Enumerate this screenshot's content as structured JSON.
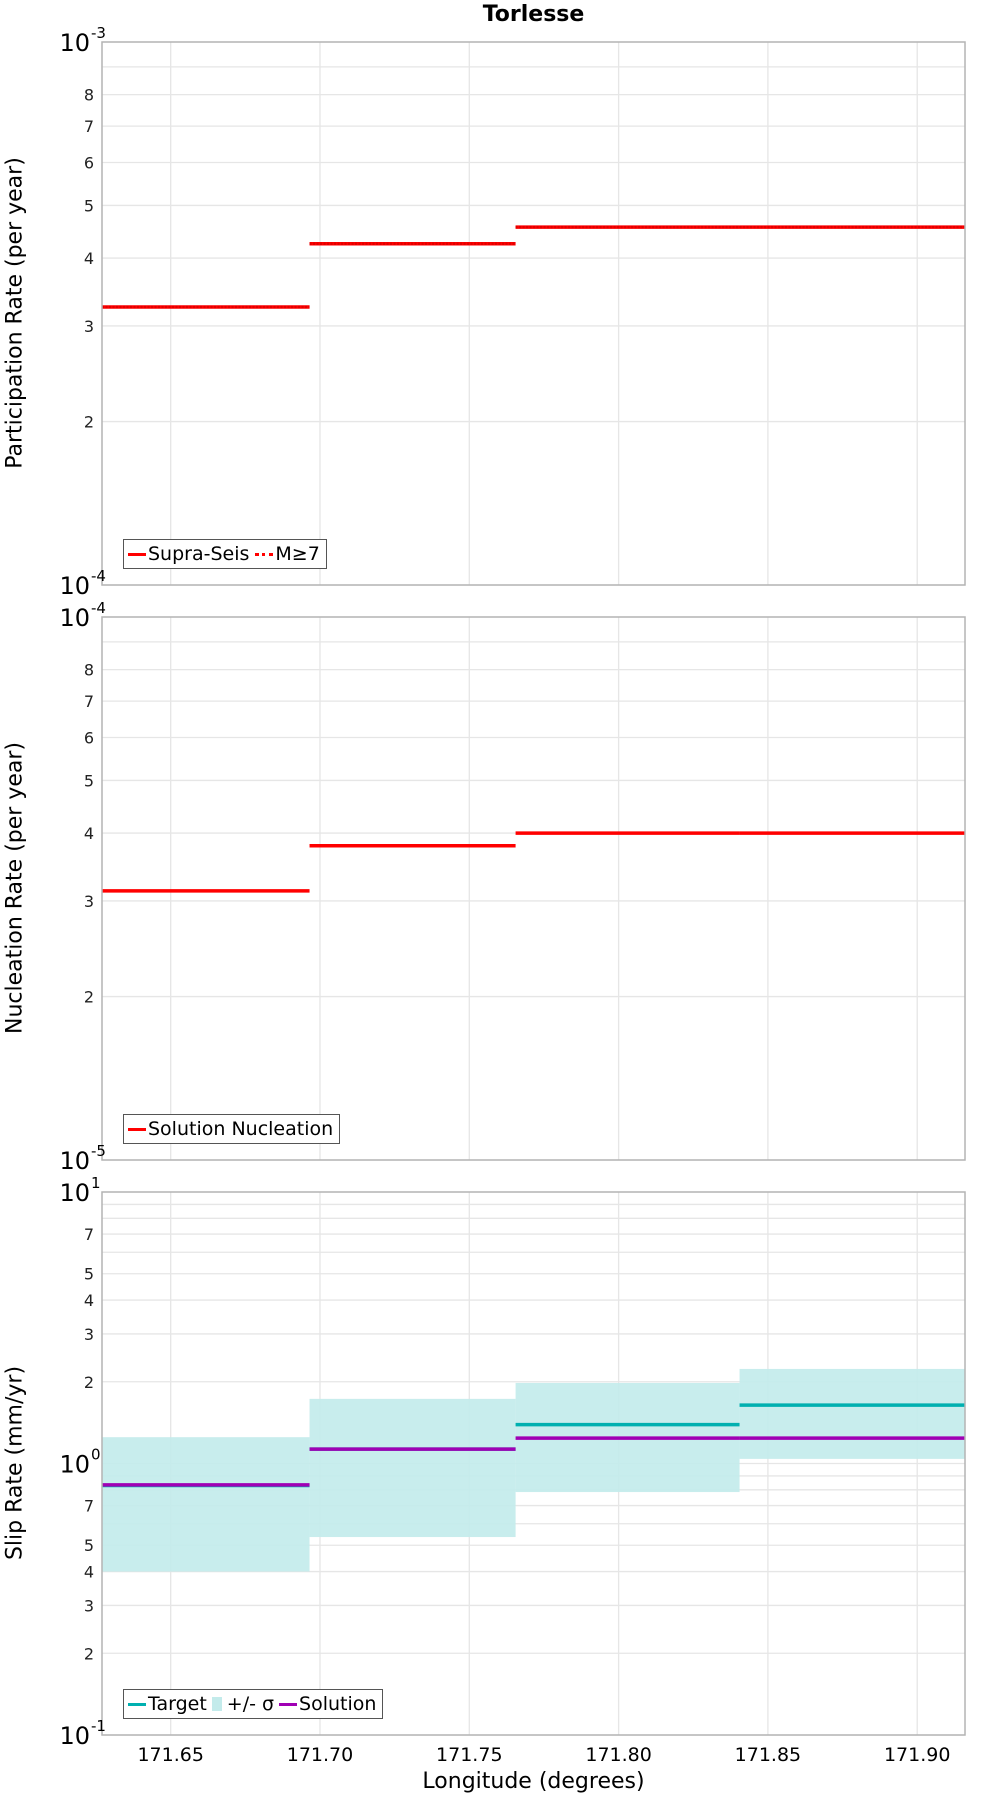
{
  "title": "Torlesse",
  "xlabel": "Longitude (degrees)",
  "colors": {
    "red": "#ff0000",
    "target": "#00b0b0",
    "sigma": "#c3ebeb",
    "solution": "#a000b4",
    "grid": "#e6e6e6",
    "axis": "#b4b4b4"
  },
  "chart_data": [
    {
      "type": "line",
      "subtype": "step",
      "title": "Torlesse",
      "xlabel": "Longitude (degrees)",
      "ylabel": "Participation Rate (per year)",
      "yscale": "log",
      "ylim": [
        0.0001,
        0.001
      ],
      "xlim": [
        171.627,
        171.916
      ],
      "xticks": [
        "171.65",
        "171.70",
        "171.75",
        "171.80",
        "171.85",
        "171.90"
      ],
      "yticks": [
        "10^-4",
        "2",
        "3",
        "4",
        "5",
        "6",
        "7",
        "8",
        "10^-3"
      ],
      "grid": true,
      "legend_position": "lower-left",
      "segments_x": [
        [
          171.627,
          171.6965
        ],
        [
          171.6965,
          171.7655
        ],
        [
          171.7655,
          171.8405
        ],
        [
          171.8405,
          171.916
        ]
      ],
      "series": [
        {
          "name": "Supra-Seis",
          "style": "solid",
          "color": "#ff0000",
          "values": [
            0.000325,
            0.000425,
            0.000456,
            0.000456
          ]
        },
        {
          "name": "M≥7",
          "style": "dotted",
          "color": "#ff0000",
          "values": [
            0.000325,
            0.000425,
            0.000456,
            0.000456
          ]
        }
      ]
    },
    {
      "type": "line",
      "subtype": "step",
      "ylabel": "Nucleation Rate (per year)",
      "yscale": "log",
      "ylim": [
        1e-05,
        0.0001
      ],
      "xlim": [
        171.627,
        171.916
      ],
      "yticks": [
        "10^-5",
        "2",
        "3",
        "4",
        "5",
        "6",
        "7",
        "8",
        "10^-4"
      ],
      "grid": true,
      "legend_position": "lower-left",
      "segments_x": [
        [
          171.627,
          171.6965
        ],
        [
          171.6965,
          171.7655
        ],
        [
          171.7655,
          171.8405
        ],
        [
          171.8405,
          171.916
        ]
      ],
      "series": [
        {
          "name": "Solution Nucleation",
          "style": "solid",
          "color": "#ff0000",
          "values": [
            3.13e-05,
            3.79e-05,
            4e-05,
            4e-05
          ]
        }
      ]
    },
    {
      "type": "line",
      "subtype": "step",
      "ylabel": "Slip Rate (mm/yr)",
      "yscale": "log",
      "ylim": [
        0.1,
        10
      ],
      "xlim": [
        171.627,
        171.916
      ],
      "xticks": [
        "171.65",
        "171.70",
        "171.75",
        "171.80",
        "171.85",
        "171.90"
      ],
      "yticks": [
        "10^-1",
        "2",
        "3",
        "4",
        "5",
        "7",
        "10^0",
        "2",
        "3",
        "4",
        "5",
        "7",
        "10^1"
      ],
      "grid": true,
      "legend_position": "lower-left",
      "segments_x": [
        [
          171.627,
          171.6965
        ],
        [
          171.6965,
          171.7655
        ],
        [
          171.7655,
          171.8405
        ],
        [
          171.8405,
          171.916
        ]
      ],
      "series": [
        {
          "name": "+/- σ",
          "style": "band",
          "color": "#c3ebeb",
          "lower": [
            0.4,
            0.536,
            0.785,
            1.04
          ],
          "upper": [
            1.25,
            1.73,
            1.98,
            2.23
          ]
        },
        {
          "name": "Target",
          "style": "solid",
          "color": "#00b0b0",
          "values": [
            0.83,
            1.13,
            1.39,
            1.64
          ]
        },
        {
          "name": "Solution",
          "style": "solid",
          "color": "#a000b4",
          "values": [
            0.834,
            1.13,
            1.24,
            1.24
          ]
        }
      ]
    }
  ],
  "panels": [
    {
      "ylabel": "Participation Rate (per year)",
      "legend": [
        {
          "label": "Supra-Seis",
          "swatch": "solid",
          "color": "#ff0000"
        },
        {
          "label": "M≥7",
          "swatch": "dotted",
          "color": "#ff0000"
        }
      ]
    },
    {
      "ylabel": "Nucleation Rate (per year)",
      "legend": [
        {
          "label": "Solution Nucleation",
          "swatch": "solid",
          "color": "#ff0000"
        }
      ]
    },
    {
      "ylabel": "Slip Rate (mm/yr)",
      "legend": [
        {
          "label": "Target",
          "swatch": "solid",
          "color": "#00b0b0"
        },
        {
          "label": "+/- σ",
          "swatch": "box",
          "color": "#c3ebeb"
        },
        {
          "label": "Solution",
          "swatch": "solid",
          "color": "#a000b4"
        }
      ]
    }
  ]
}
